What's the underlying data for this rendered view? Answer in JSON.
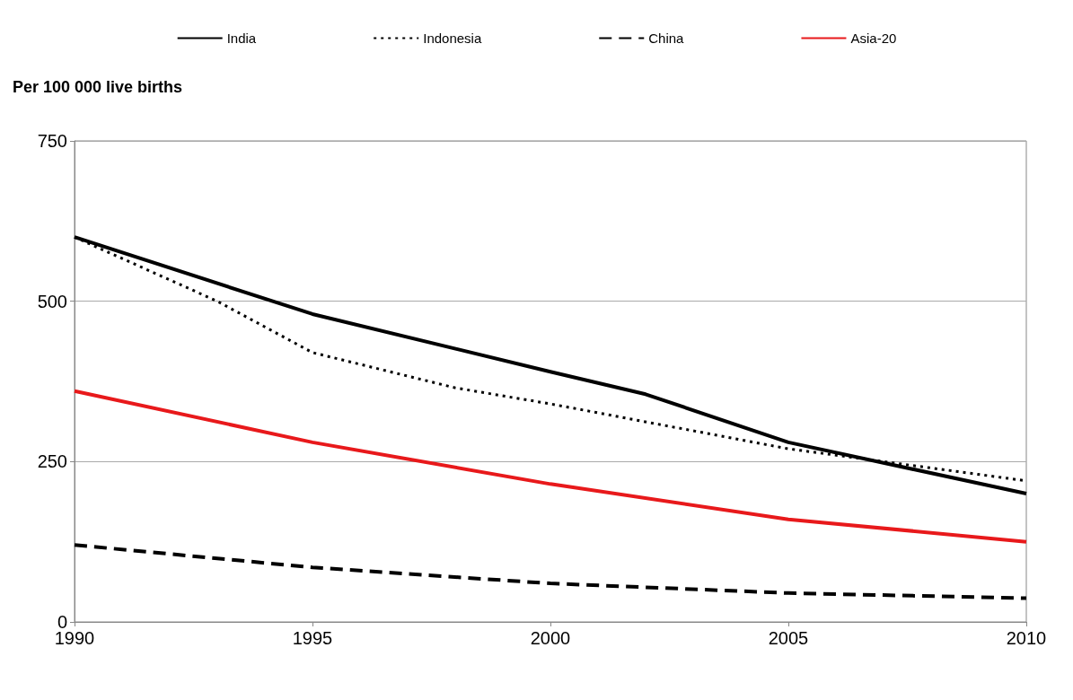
{
  "chart_data": {
    "type": "line",
    "ylabel": "Per 100 000 live births",
    "series": [
      {
        "name": "India",
        "color": "#000000",
        "line_style": "solid",
        "x": [
          1990,
          1995,
          2000,
          2002,
          2005,
          2010
        ],
        "values": [
          600,
          480,
          390,
          355,
          280,
          200
        ]
      },
      {
        "name": "Indonesia",
        "color": "#000000",
        "line_style": "dotted",
        "x": [
          1990,
          1993,
          1995,
          1998,
          2000,
          2005,
          2010
        ],
        "values": [
          600,
          500,
          420,
          365,
          340,
          270,
          220
        ]
      },
      {
        "name": "China",
        "color": "#000000",
        "line_style": "dashed",
        "x": [
          1990,
          1995,
          2000,
          2005,
          2010
        ],
        "values": [
          120,
          85,
          60,
          45,
          37
        ]
      },
      {
        "name": "Asia-20",
        "color": "#e8191b",
        "line_style": "solid",
        "x": [
          1990,
          1995,
          2000,
          2005,
          2010
        ],
        "values": [
          360,
          280,
          215,
          160,
          125
        ]
      }
    ],
    "xlim": [
      1990,
      2010
    ],
    "xticks": [
      1990,
      1995,
      2000,
      2005,
      2010
    ],
    "ylim": [
      0,
      750
    ],
    "yticks": [
      0,
      250,
      500,
      750
    ],
    "grid": "y",
    "legend": "top",
    "marker": "none"
  }
}
